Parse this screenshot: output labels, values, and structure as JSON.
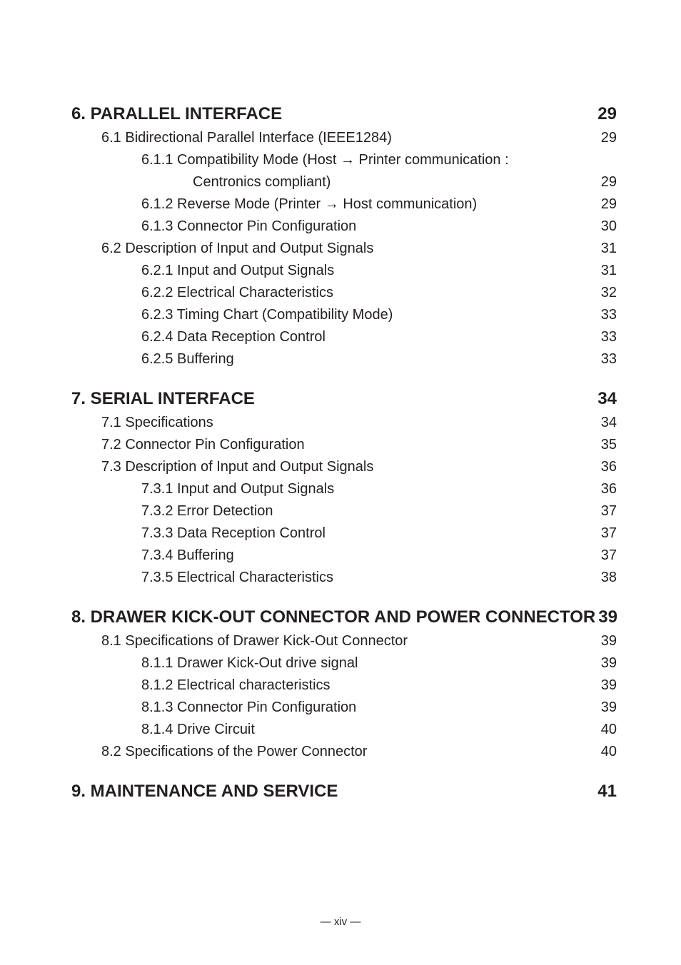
{
  "toc": [
    {
      "level": 1,
      "label": "6. PARALLEL INTERFACE",
      "page": "29"
    },
    {
      "level": 2,
      "label": "6.1 Bidirectional Parallel Interface (IEEE1284)",
      "page": "29"
    },
    {
      "level": 3,
      "label": "6.1.1 Compatibility Mode (Host → Printer communication :",
      "page": ""
    },
    {
      "level": "3cont",
      "label": "Centronics compliant)",
      "page": "29"
    },
    {
      "level": 3,
      "label": "6.1.2 Reverse Mode (Printer → Host communication)",
      "page": "29"
    },
    {
      "level": 3,
      "label": "6.1.3 Connector Pin Configuration",
      "page": "30"
    },
    {
      "level": 2,
      "label": "6.2 Description of Input and Output Signals",
      "page": "31"
    },
    {
      "level": 3,
      "label": "6.2.1 Input and Output Signals",
      "page": "31"
    },
    {
      "level": 3,
      "label": "6.2.2 Electrical Characteristics",
      "page": "32"
    },
    {
      "level": 3,
      "label": "6.2.3 Timing Chart (Compatibility Mode)",
      "page": "33"
    },
    {
      "level": 3,
      "label": "6.2.4 Data Reception Control",
      "page": "33"
    },
    {
      "level": 3,
      "label": "6.2.5 Buffering",
      "page": "33"
    },
    {
      "level": 1,
      "label": "7. SERIAL INTERFACE",
      "page": "34"
    },
    {
      "level": 2,
      "label": "7.1 Specifications",
      "page": "34"
    },
    {
      "level": 2,
      "label": "7.2 Connector Pin Configuration",
      "page": "35"
    },
    {
      "level": 2,
      "label": "7.3 Description of Input and Output Signals",
      "page": "36"
    },
    {
      "level": 3,
      "label": "7.3.1 Input and Output Signals",
      "page": "36"
    },
    {
      "level": 3,
      "label": "7.3.2 Error Detection",
      "page": "37"
    },
    {
      "level": 3,
      "label": "7.3.3 Data Reception Control",
      "page": "37"
    },
    {
      "level": 3,
      "label": "7.3.4 Buffering",
      "page": "37"
    },
    {
      "level": 3,
      "label": "7.3.5 Electrical Characteristics",
      "page": "38"
    },
    {
      "level": 1,
      "label": "8. DRAWER KICK-OUT CONNECTOR AND POWER CONNECTOR",
      "page": "39"
    },
    {
      "level": 2,
      "label": "8.1 Specifications of Drawer Kick-Out Connector",
      "page": "39"
    },
    {
      "level": 3,
      "label": "8.1.1 Drawer Kick-Out drive signal",
      "page": "39"
    },
    {
      "level": 3,
      "label": "8.1.2 Electrical characteristics",
      "page": "39"
    },
    {
      "level": 3,
      "label": "8.1.3 Connector Pin Configuration",
      "page": "39"
    },
    {
      "level": 3,
      "label": "8.1.4 Drive Circuit",
      "page": "40"
    },
    {
      "level": 2,
      "label": "8.2 Specifications of the Power Connector",
      "page": "40"
    },
    {
      "level": 1,
      "label": "9. MAINTENANCE AND SERVICE",
      "page": "41"
    }
  ],
  "footer": "— xiv —"
}
